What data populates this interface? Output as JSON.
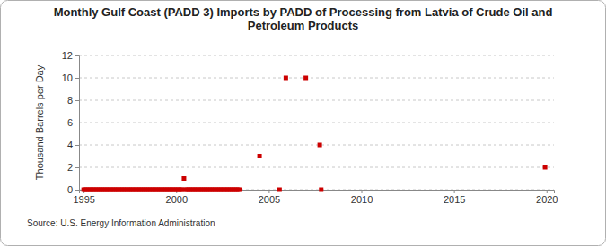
{
  "chart_data": {
    "type": "scatter",
    "title": "Monthly Gulf Coast (PADD 3) Imports by PADD of Processing from Latvia of Crude Oil and Petroleum Products",
    "y_label": "Thousand Barrels per Day",
    "source": "Source: U.S. Energy Information Administration",
    "x": [
      1995,
      1995.08,
      1995.17,
      1995.25,
      1995.33,
      1995.42,
      1995.5,
      1995.58,
      1995.67,
      1995.75,
      1995.83,
      1995.92,
      1996,
      1996.08,
      1996.17,
      1996.25,
      1996.33,
      1996.42,
      1996.5,
      1996.58,
      1996.67,
      1996.75,
      1996.83,
      1996.92,
      1997,
      1997.08,
      1997.17,
      1997.25,
      1997.33,
      1997.42,
      1997.5,
      1997.58,
      1997.67,
      1997.75,
      1997.83,
      1997.92,
      1998,
      1998.08,
      1998.17,
      1998.25,
      1998.33,
      1998.42,
      1998.5,
      1998.58,
      1998.67,
      1998.75,
      1998.83,
      1998.92,
      1999,
      1999.08,
      1999.17,
      1999.25,
      1999.33,
      1999.42,
      1999.5,
      1999.58,
      1999.67,
      1999.75,
      1999.83,
      1999.92,
      2000,
      2000.08,
      2000.17,
      2000.25,
      2000.33,
      2000.42,
      2000.5,
      2000.58,
      2000.67,
      2000.75,
      2000.83,
      2000.92,
      2001,
      2001.08,
      2001.17,
      2001.25,
      2001.33,
      2001.42,
      2001.5,
      2001.58,
      2001.67,
      2001.75,
      2001.83,
      2001.92,
      2002,
      2002.08,
      2002.17,
      2002.25,
      2002.33,
      2002.42,
      2002.5,
      2002.58,
      2002.67,
      2002.75,
      2002.83,
      2002.92,
      2003,
      2003.08,
      2003.17,
      2003.25,
      2003.33,
      2003.42,
      2004.5,
      2005.58,
      2005.92,
      2007,
      2007.75,
      2007.83,
      2019.92
    ],
    "values": [
      0,
      0,
      0,
      0,
      0,
      0,
      0,
      0,
      0,
      0,
      0,
      0,
      0,
      0,
      0,
      0,
      0,
      0,
      0,
      0,
      0,
      0,
      0,
      0,
      0,
      0,
      0,
      0,
      0,
      0,
      0,
      0,
      0,
      0,
      0,
      0,
      0,
      0,
      0,
      0,
      0,
      0,
      0,
      0,
      0,
      0,
      0,
      0,
      0,
      0,
      0,
      0,
      0,
      0,
      0,
      0,
      0,
      0,
      0,
      0,
      0,
      0,
      0,
      0,
      0,
      1,
      0,
      0,
      0,
      0,
      0,
      0,
      0,
      0,
      0,
      0,
      0,
      0,
      0,
      0,
      0,
      0,
      0,
      0,
      0,
      0,
      0,
      0,
      0,
      0,
      0,
      0,
      0,
      0,
      0,
      0,
      0,
      0,
      0,
      0,
      0,
      0,
      3,
      0,
      10,
      10,
      4,
      0,
      2
    ],
    "color": "#cc0000",
    "marker": "square",
    "xlim": [
      1994.75,
      2020.4
    ],
    "xticks": [
      1995,
      2000,
      2005,
      2010,
      2015,
      2020
    ],
    "ylim": [
      0,
      12
    ],
    "yticks": [
      0,
      2,
      4,
      6,
      8,
      10,
      12
    ],
    "grid": true
  }
}
